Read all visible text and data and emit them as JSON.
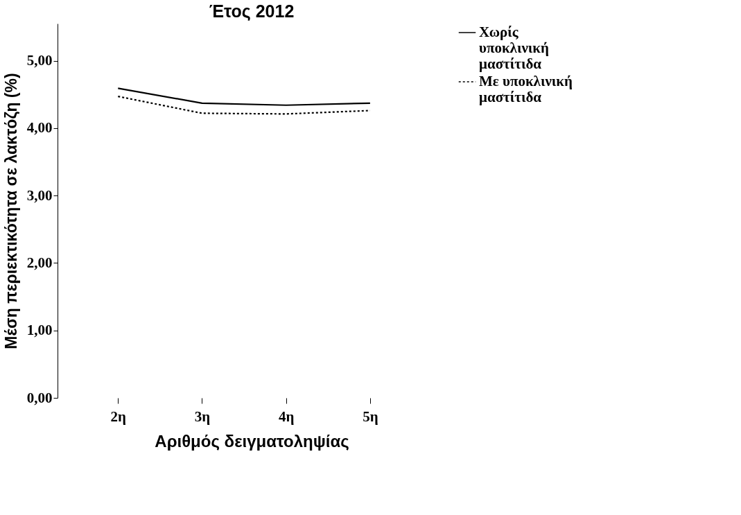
{
  "chart_data": {
    "type": "line",
    "title": "Έτος 2012",
    "xlabel": "Αριθμός δειγματοληψίας",
    "ylabel": "Μέση περιεκτικότητα σε λακτόζη (%)",
    "categories": [
      "2η",
      "3η",
      "4η",
      "5η"
    ],
    "series": [
      {
        "name": "Χωρίς υποκλινική μαστίτιδα",
        "color": "#000000",
        "line_style": "solid",
        "values": [
          4.59,
          4.37,
          4.34,
          4.37
        ]
      },
      {
        "name": "Με υποκλινική μαστίτιδα",
        "color": "#000000",
        "line_style": "dotted",
        "values": [
          4.47,
          4.22,
          4.21,
          4.26
        ]
      }
    ],
    "ylim": [
      0,
      5.55
    ],
    "yticks": [
      {
        "value": 0,
        "label": "0,00"
      },
      {
        "value": 1,
        "label": "1,00"
      },
      {
        "value": 2,
        "label": "2,00"
      },
      {
        "value": 3,
        "label": "3,00"
      },
      {
        "value": 4,
        "label": "4,00"
      },
      {
        "value": 5,
        "label": "5,00"
      }
    ],
    "grid": false,
    "legend": "right",
    "marker": "none"
  }
}
